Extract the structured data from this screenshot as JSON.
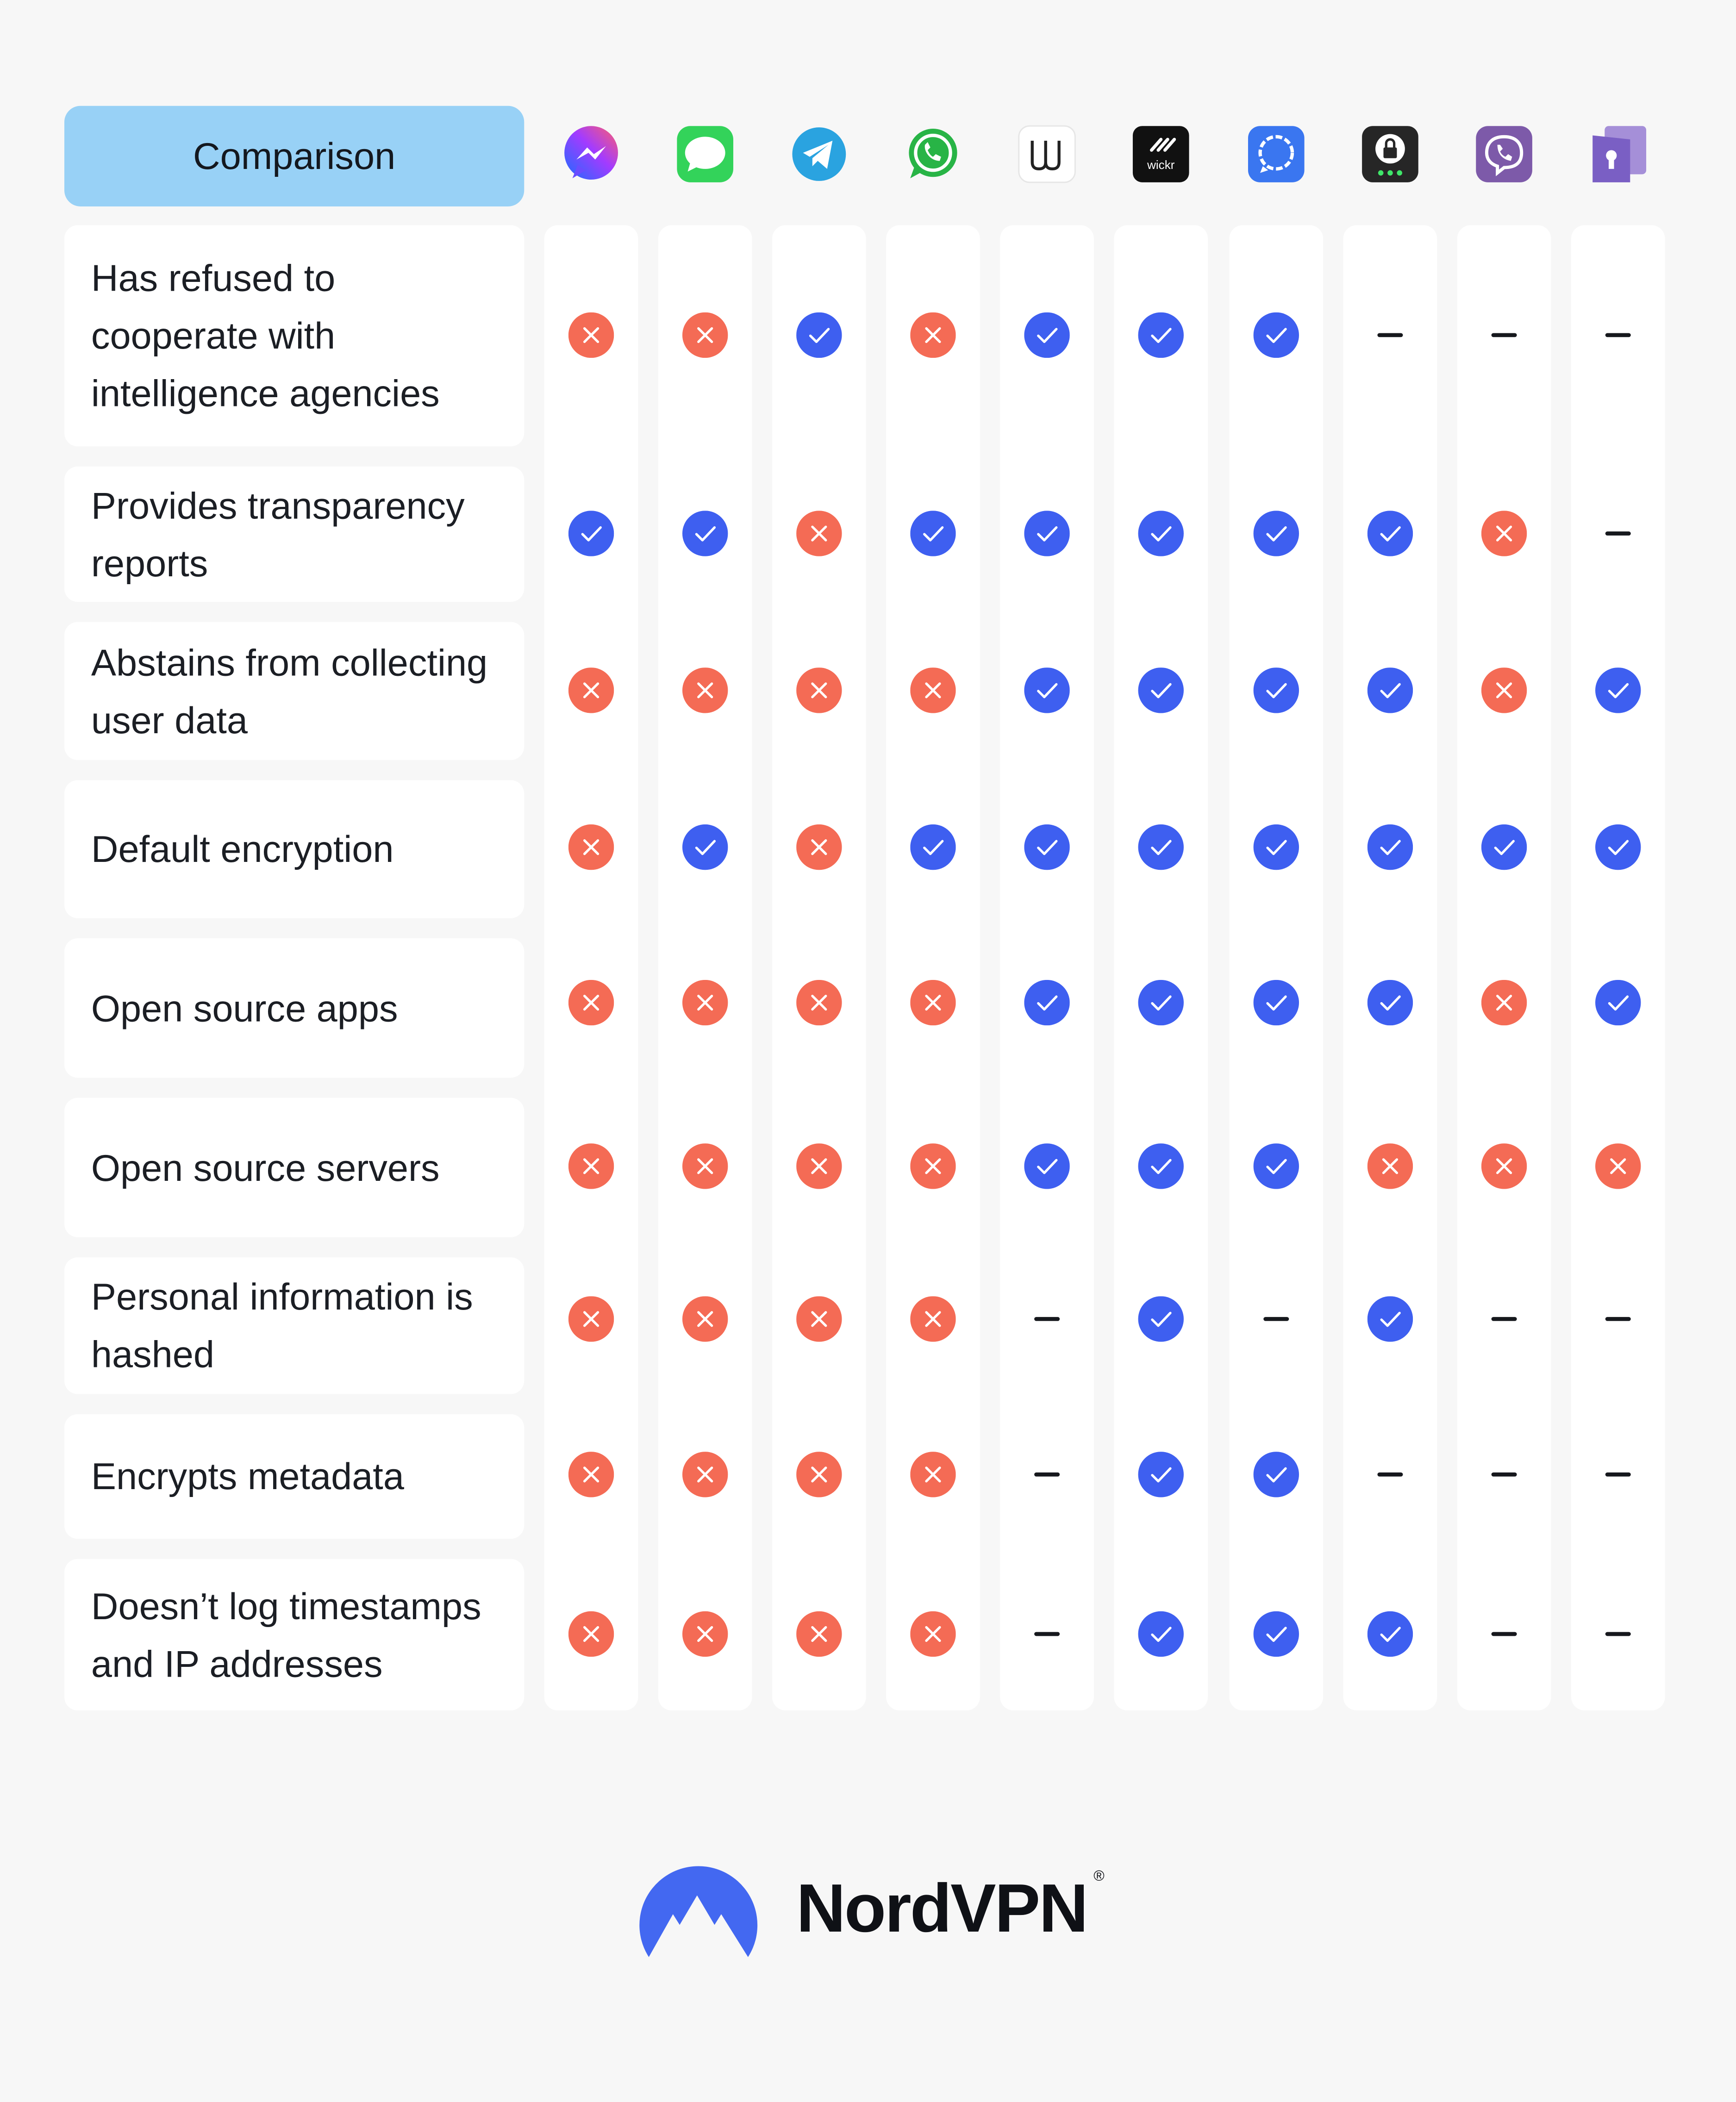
{
  "header": {
    "label": "Comparison"
  },
  "colors": {
    "check": "#3e5ff0",
    "cross": "#f46b55",
    "dash": "#16181d",
    "header_bg": "#98d1f6"
  },
  "apps": [
    {
      "name": "messenger-icon"
    },
    {
      "name": "imessage-icon"
    },
    {
      "name": "telegram-icon"
    },
    {
      "name": "whatsapp-icon"
    },
    {
      "name": "wire-icon"
    },
    {
      "name": "wickr-icon",
      "label": "wickr"
    },
    {
      "name": "signal-icon"
    },
    {
      "name": "threema-icon"
    },
    {
      "name": "viber-icon"
    },
    {
      "name": "keybase-icon"
    }
  ],
  "rows": [
    {
      "label": "Has refused to cooperate with intelligence agencies",
      "values": [
        "x",
        "x",
        "v",
        "x",
        "v",
        "v",
        "v",
        "-",
        "-",
        "-"
      ]
    },
    {
      "label": "Provides transparency reports",
      "values": [
        "v",
        "v",
        "x",
        "v",
        "v",
        "v",
        "v",
        "v",
        "x",
        "-"
      ]
    },
    {
      "label": "Abstains from collecting user data",
      "values": [
        "x",
        "x",
        "x",
        "x",
        "v",
        "v",
        "v",
        "v",
        "x",
        "v"
      ]
    },
    {
      "label": "Default encryption",
      "values": [
        "x",
        "v",
        "x",
        "v",
        "v",
        "v",
        "v",
        "v",
        "v",
        "v"
      ]
    },
    {
      "label": "Open source apps",
      "values": [
        "x",
        "x",
        "x",
        "x",
        "v",
        "v",
        "v",
        "v",
        "x",
        "v"
      ]
    },
    {
      "label": "Open source servers",
      "values": [
        "x",
        "x",
        "x",
        "x",
        "v",
        "v",
        "v",
        "x",
        "x",
        "x"
      ]
    },
    {
      "label": "Personal information is hashed",
      "values": [
        "x",
        "x",
        "x",
        "x",
        "-",
        "v",
        "-",
        "v",
        "-",
        "-"
      ]
    },
    {
      "label": "Encrypts metadata",
      "values": [
        "x",
        "x",
        "x",
        "x",
        "-",
        "v",
        "v",
        "-",
        "-",
        "-"
      ]
    },
    {
      "label": "Doesn’t log timestamps and IP addresses",
      "values": [
        "x",
        "x",
        "x",
        "x",
        "-",
        "v",
        "v",
        "v",
        "-",
        "-"
      ]
    }
  ],
  "brand": {
    "name": "NordVPN",
    "registered": "®"
  }
}
